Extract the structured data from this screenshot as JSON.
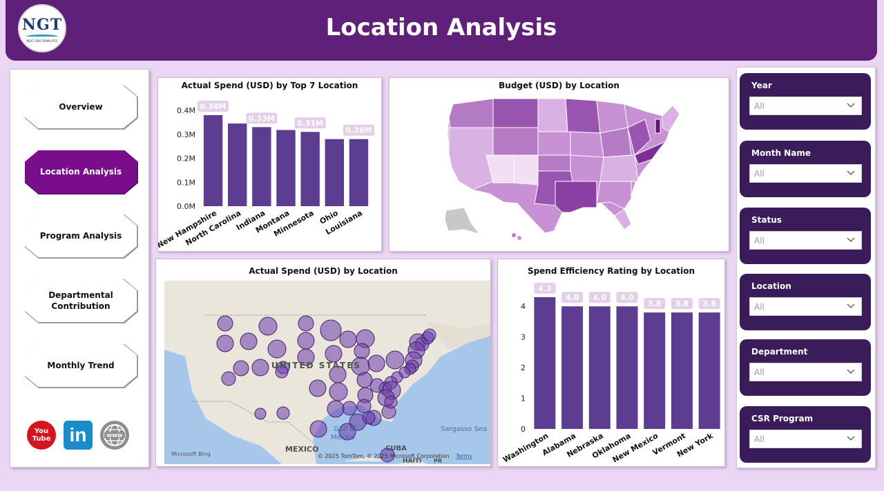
{
  "header": {
    "title": "Location Analysis",
    "logo": {
      "brand": "NGT",
      "tagline": "NEXT GEN TEMPLATES"
    }
  },
  "nav": [
    {
      "label": "Overview",
      "active": false
    },
    {
      "label": "Location Analysis",
      "active": true
    },
    {
      "label": "Program Analysis",
      "active": false
    },
    {
      "label": "Departmental Contribution",
      "active": false
    },
    {
      "label": "Monthly Trend",
      "active": false
    }
  ],
  "social": {
    "youtube_line1": "You",
    "youtube_line2": "Tube",
    "linkedin": "in",
    "icons": [
      "youtube-icon",
      "linkedin-icon",
      "web-globe-icon"
    ]
  },
  "colors": {
    "header": "#5f2079",
    "bar": "#5c3d92",
    "slicer": "#3a1c5a",
    "active_nav": "#7a0d8c",
    "label_bg": "#e4cfe8"
  },
  "chart_data": [
    {
      "type": "bar",
      "title": "Actual Spend (USD) by Top 7 Location",
      "categories": [
        "New Hampshire",
        "North Carolina",
        "Indiana",
        "Montana",
        "Minnesota",
        "Ohio",
        "Louisiana"
      ],
      "values": [
        0.38,
        0.345,
        0.33,
        0.318,
        0.31,
        0.28,
        0.28
      ],
      "data_labels": [
        "0.38M",
        "",
        "0.33M",
        "",
        "0.31M",
        "",
        "0.28M"
      ],
      "unit": "M",
      "ylim": [
        0,
        0.4
      ],
      "y_ticks": [
        "0.0M",
        "0.1M",
        "0.2M",
        "0.3M",
        "0.4M"
      ],
      "grid": false
    },
    {
      "type": "bar",
      "title": "Spend Efficiency Rating by Location",
      "categories": [
        "Washington",
        "Alabama",
        "Nebraska",
        "Oklahoma",
        "New Mexico",
        "Vermont",
        "New York"
      ],
      "values": [
        4.3,
        4.0,
        4.0,
        4.0,
        3.8,
        3.8,
        3.8
      ],
      "data_labels": [
        "4.3",
        "4.0",
        "4.0",
        "4.0",
        "3.8",
        "3.8",
        "3.8"
      ],
      "ylim": [
        0,
        4.5
      ],
      "y_ticks": [
        "0",
        "1",
        "2",
        "3",
        "4"
      ],
      "grid": false
    }
  ],
  "choropleth": {
    "title": "Budget (USD) by Location"
  },
  "bubble_map": {
    "title": "Actual Spend (USD) by Location",
    "labels": {
      "country": "UNITED STATES",
      "gulf": "Gulf of Mexico",
      "sea": "Sargasso Sea",
      "mexico": "MEXICO",
      "cuba": "CUBA",
      "haiti": "HAITI",
      "pr": "PR"
    },
    "attribution": "© 2025 TomTom, © 2025 Microsoft Corporation",
    "terms": "Terms",
    "bing": "Microsoft Bing"
  },
  "filters": [
    {
      "label": "Year",
      "value": "All"
    },
    {
      "label": "Month Name",
      "value": "All"
    },
    {
      "label": "Status",
      "value": "All"
    },
    {
      "label": "Location",
      "value": "All"
    },
    {
      "label": "Department",
      "value": "All"
    },
    {
      "label": "CSR Program",
      "value": "All"
    }
  ]
}
